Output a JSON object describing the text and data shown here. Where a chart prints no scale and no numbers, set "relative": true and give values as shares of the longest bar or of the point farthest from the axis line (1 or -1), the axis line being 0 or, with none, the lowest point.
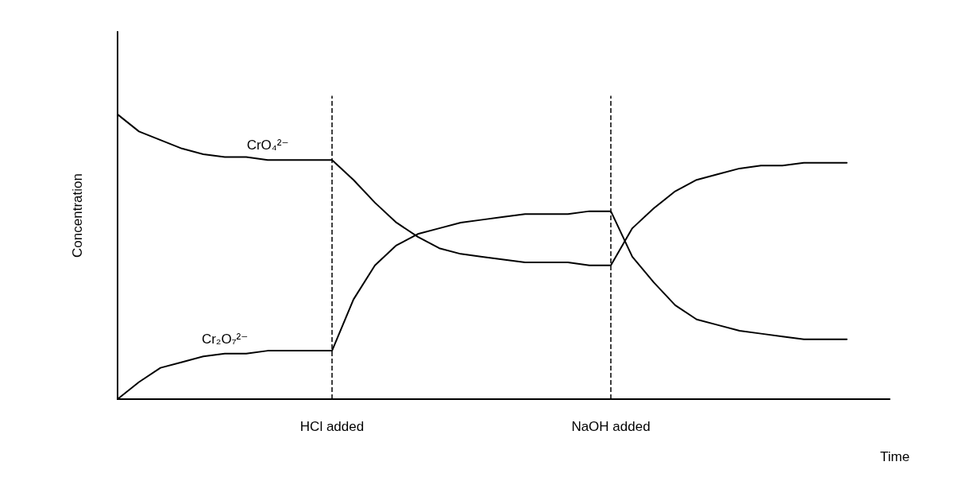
{
  "chart_data": {
    "type": "line",
    "relative": true,
    "xlabel": "Time",
    "ylabel": "Concentration",
    "legend": false,
    "grid": false,
    "marker": "none",
    "line_style": "solid",
    "categories": [
      null,
      null,
      null,
      null,
      null,
      null,
      null,
      null,
      null,
      null,
      "HCl added",
      null,
      null,
      null,
      null,
      null,
      null,
      null,
      null,
      null,
      null,
      null,
      null,
      "NaOH added",
      null,
      null,
      null,
      null,
      null,
      null,
      null,
      null,
      null,
      null,
      null,
      null,
      null
    ],
    "series": [
      {
        "name": "CrO₄²⁻",
        "color": "#000000",
        "values": [
          1.0,
          0.94,
          0.91,
          0.88,
          0.86,
          0.85,
          0.85,
          0.84,
          0.84,
          0.84,
          0.84,
          0.77,
          0.69,
          0.62,
          0.57,
          0.53,
          0.51,
          0.5,
          0.49,
          0.48,
          0.48,
          0.48,
          0.47,
          0.47,
          0.6,
          0.67,
          0.73,
          0.77,
          0.79,
          0.81,
          0.82,
          0.82,
          0.83,
          0.83,
          0.83,
          null,
          null
        ]
      },
      {
        "name": "Cr₂O₇²⁻",
        "color": "#000000",
        "values": [
          0,
          0.06,
          0.11,
          0.13,
          0.15,
          0.16,
          0.16,
          0.17,
          0.17,
          0.17,
          0.17,
          0.35,
          0.47,
          0.54,
          0.58,
          0.6,
          0.62,
          0.63,
          0.64,
          0.65,
          0.65,
          0.65,
          0.66,
          0.66,
          0.5,
          0.41,
          0.33,
          0.28,
          0.26,
          0.24,
          0.23,
          0.22,
          0.21,
          0.21,
          0.21,
          null,
          null
        ]
      }
    ],
    "ref_lines": [
      {
        "axis": "x",
        "value": "HCl added",
        "color": "#000000",
        "line_style": "dashed"
      },
      {
        "axis": "x",
        "value": "NaOH added",
        "color": "#000000",
        "line_style": "dashed"
      }
    ]
  }
}
